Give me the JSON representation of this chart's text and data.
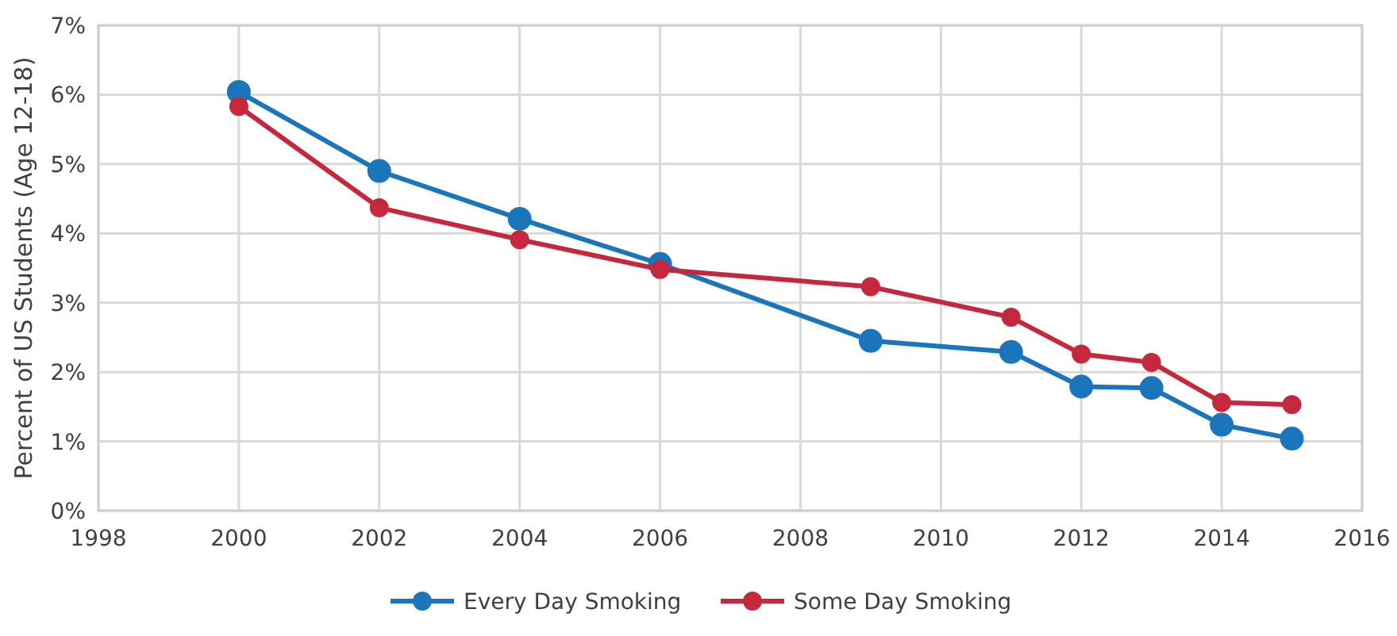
{
  "chart_data": {
    "type": "line",
    "ylabel": "Percent of US Students (Age 12-18)",
    "x": [
      2000,
      2002,
      2004,
      2006,
      2009,
      2011,
      2012,
      2013,
      2014,
      2015
    ],
    "series": [
      {
        "name": "Every Day Smoking",
        "color": "#1b75bb",
        "values": [
          6.04,
          4.9,
          4.21,
          3.56,
          2.45,
          2.29,
          1.79,
          1.77,
          1.24,
          1.04
        ]
      },
      {
        "name": "Some Day Smoking",
        "color": "#c5283d",
        "values": [
          5.83,
          4.37,
          3.91,
          3.48,
          3.23,
          2.79,
          2.26,
          2.14,
          1.56,
          1.53
        ]
      }
    ],
    "xlim": [
      1998,
      2016
    ],
    "xticks": [
      1998,
      2000,
      2002,
      2004,
      2006,
      2008,
      2010,
      2012,
      2014,
      2016
    ],
    "ylim": [
      0,
      7
    ],
    "yticks": [
      {
        "value": 0,
        "label": "0%"
      },
      {
        "value": 1,
        "label": "1%"
      },
      {
        "value": 2,
        "label": "2%"
      },
      {
        "value": 3,
        "label": "3%"
      },
      {
        "value": 4,
        "label": "4%"
      },
      {
        "value": 5,
        "label": "5%"
      },
      {
        "value": 6,
        "label": "6%"
      },
      {
        "value": 7,
        "label": "7%"
      }
    ],
    "grid": true,
    "legend": "bottom",
    "marker": "circle",
    "line_style": "solid"
  }
}
